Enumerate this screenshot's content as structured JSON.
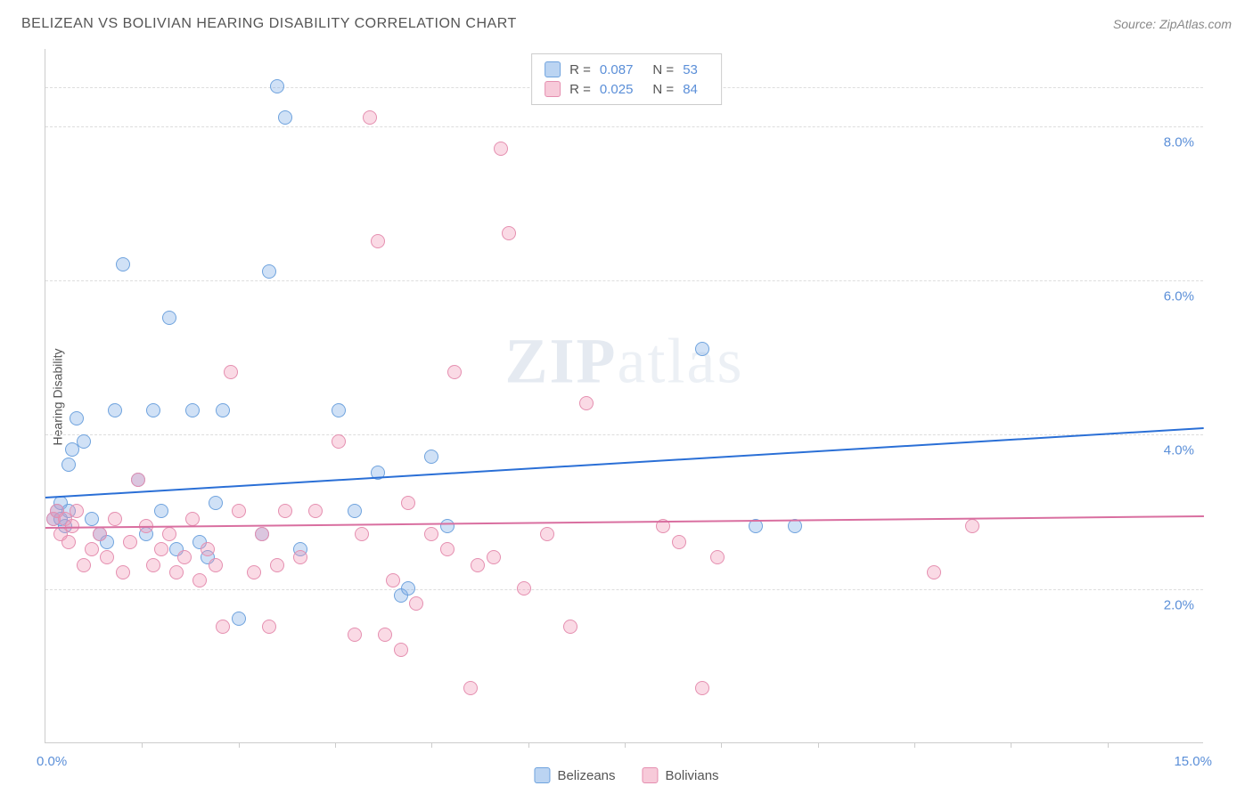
{
  "title": "BELIZEAN VS BOLIVIAN HEARING DISABILITY CORRELATION CHART",
  "source": "Source: ZipAtlas.com",
  "ylabel": "Hearing Disability",
  "watermark_bold": "ZIP",
  "watermark_thin": "atlas",
  "chart": {
    "type": "scatter",
    "xlim": [
      0,
      15
    ],
    "ylim": [
      0,
      9
    ],
    "xticks": [
      1.25,
      2.5,
      3.75,
      5,
      6.25,
      7.5,
      8.75,
      10,
      11.25,
      12.5,
      13.75
    ],
    "xlabel_min": "0.0%",
    "xlabel_max": "15.0%",
    "yticks": [
      {
        "v": 2.0,
        "label": "2.0%"
      },
      {
        "v": 4.0,
        "label": "4.0%"
      },
      {
        "v": 6.0,
        "label": "6.0%"
      },
      {
        "v": 8.0,
        "label": "8.0%"
      }
    ],
    "background_color": "#ffffff",
    "grid_color": "#dddddd",
    "axis_color": "#cccccc",
    "marker_radius": 8,
    "series": [
      {
        "name": "Belizeans",
        "fill": "rgba(120,170,230,0.35)",
        "stroke": "#6fa3de",
        "trend_color": "#2a6fd6",
        "trend": {
          "x1": 0,
          "y1": 3.2,
          "x2": 15,
          "y2": 4.1
        },
        "R": "0.087",
        "N": "53",
        "points": [
          [
            0.1,
            2.9
          ],
          [
            0.15,
            3.0
          ],
          [
            0.2,
            2.9
          ],
          [
            0.2,
            3.1
          ],
          [
            0.25,
            2.8
          ],
          [
            0.3,
            3.0
          ],
          [
            0.3,
            3.6
          ],
          [
            0.35,
            3.8
          ],
          [
            0.4,
            4.2
          ],
          [
            0.5,
            3.9
          ],
          [
            0.6,
            2.9
          ],
          [
            0.7,
            2.7
          ],
          [
            0.8,
            2.6
          ],
          [
            0.9,
            4.3
          ],
          [
            1.0,
            6.2
          ],
          [
            1.2,
            3.4
          ],
          [
            1.3,
            2.7
          ],
          [
            1.4,
            4.3
          ],
          [
            1.5,
            3.0
          ],
          [
            1.6,
            5.5
          ],
          [
            1.7,
            2.5
          ],
          [
            1.9,
            4.3
          ],
          [
            2.0,
            2.6
          ],
          [
            2.1,
            2.4
          ],
          [
            2.2,
            3.1
          ],
          [
            2.3,
            4.3
          ],
          [
            2.5,
            1.6
          ],
          [
            2.8,
            2.7
          ],
          [
            2.9,
            6.1
          ],
          [
            3.0,
            8.5
          ],
          [
            3.1,
            8.1
          ],
          [
            3.3,
            2.5
          ],
          [
            3.8,
            4.3
          ],
          [
            4.0,
            3.0
          ],
          [
            4.3,
            3.5
          ],
          [
            4.6,
            1.9
          ],
          [
            4.7,
            2.0
          ],
          [
            5.0,
            3.7
          ],
          [
            5.2,
            2.8
          ],
          [
            8.5,
            5.1
          ],
          [
            9.2,
            2.8
          ],
          [
            9.7,
            2.8
          ]
        ]
      },
      {
        "name": "Bolivians",
        "fill": "rgba(240,150,180,0.35)",
        "stroke": "#e58fb0",
        "trend_color": "#d96fa0",
        "trend": {
          "x1": 0,
          "y1": 2.8,
          "x2": 15,
          "y2": 2.95
        },
        "R": "0.025",
        "N": "84",
        "points": [
          [
            0.1,
            2.9
          ],
          [
            0.15,
            3.0
          ],
          [
            0.2,
            2.7
          ],
          [
            0.25,
            2.9
          ],
          [
            0.3,
            2.6
          ],
          [
            0.35,
            2.8
          ],
          [
            0.4,
            3.0
          ],
          [
            0.5,
            2.3
          ],
          [
            0.6,
            2.5
          ],
          [
            0.7,
            2.7
          ],
          [
            0.8,
            2.4
          ],
          [
            0.9,
            2.9
          ],
          [
            1.0,
            2.2
          ],
          [
            1.1,
            2.6
          ],
          [
            1.2,
            3.4
          ],
          [
            1.3,
            2.8
          ],
          [
            1.4,
            2.3
          ],
          [
            1.5,
            2.5
          ],
          [
            1.6,
            2.7
          ],
          [
            1.7,
            2.2
          ],
          [
            1.8,
            2.4
          ],
          [
            1.9,
            2.9
          ],
          [
            2.0,
            2.1
          ],
          [
            2.1,
            2.5
          ],
          [
            2.2,
            2.3
          ],
          [
            2.3,
            1.5
          ],
          [
            2.4,
            4.8
          ],
          [
            2.5,
            3.0
          ],
          [
            2.7,
            2.2
          ],
          [
            2.8,
            2.7
          ],
          [
            2.9,
            1.5
          ],
          [
            3.0,
            2.3
          ],
          [
            3.1,
            3.0
          ],
          [
            3.3,
            2.4
          ],
          [
            3.5,
            3.0
          ],
          [
            3.8,
            3.9
          ],
          [
            4.0,
            1.4
          ],
          [
            4.1,
            2.7
          ],
          [
            4.2,
            8.1
          ],
          [
            4.3,
            6.5
          ],
          [
            4.4,
            1.4
          ],
          [
            4.5,
            2.1
          ],
          [
            4.6,
            1.2
          ],
          [
            4.7,
            3.1
          ],
          [
            4.8,
            1.8
          ],
          [
            5.0,
            2.7
          ],
          [
            5.2,
            2.5
          ],
          [
            5.3,
            4.8
          ],
          [
            5.5,
            0.7
          ],
          [
            5.6,
            2.3
          ],
          [
            5.8,
            2.4
          ],
          [
            5.9,
            7.7
          ],
          [
            6.0,
            6.6
          ],
          [
            6.2,
            2.0
          ],
          [
            6.5,
            2.7
          ],
          [
            6.8,
            1.5
          ],
          [
            7.0,
            4.4
          ],
          [
            8.0,
            2.8
          ],
          [
            8.2,
            2.6
          ],
          [
            8.5,
            0.7
          ],
          [
            8.7,
            2.4
          ],
          [
            11.5,
            2.2
          ],
          [
            12.0,
            2.8
          ]
        ]
      }
    ]
  },
  "legend_top": [
    {
      "swatch_fill": "rgba(120,170,230,0.5)",
      "swatch_stroke": "#6fa3de",
      "R_label": "R =",
      "R": "0.087",
      "N_label": "N =",
      "N": "53"
    },
    {
      "swatch_fill": "rgba(240,150,180,0.5)",
      "swatch_stroke": "#e58fb0",
      "R_label": "R =",
      "R": "0.025",
      "N_label": "N =",
      "N": "84"
    }
  ],
  "legend_bottom": [
    {
      "swatch_fill": "rgba(120,170,230,0.5)",
      "swatch_stroke": "#6fa3de",
      "label": "Belizeans"
    },
    {
      "swatch_fill": "rgba(240,150,180,0.5)",
      "swatch_stroke": "#e58fb0",
      "label": "Bolivians"
    }
  ]
}
